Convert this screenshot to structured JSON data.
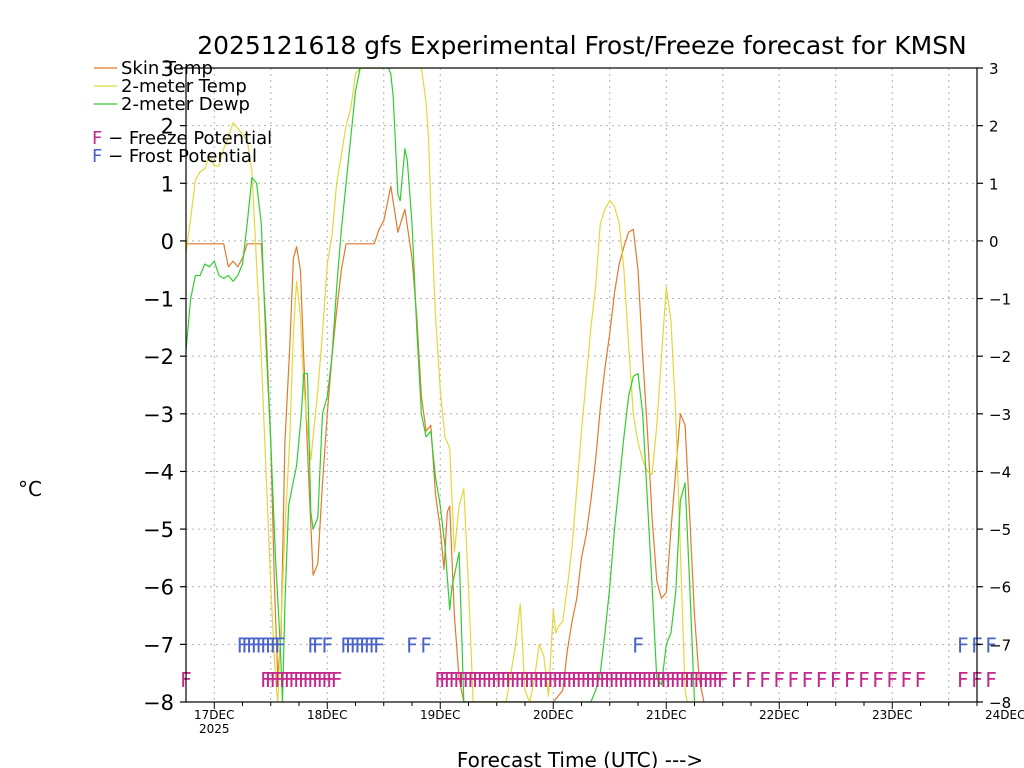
{
  "chart_data": {
    "type": "line",
    "title": "2025121618 gfs Experimental Frost/Freeze forecast for KMSN",
    "xlabel": "Forecast Time (UTC) --->",
    "ylabel": "°C",
    "ylim": [
      -8,
      3
    ],
    "yticks": [
      3,
      2,
      1,
      0,
      -1,
      -2,
      -3,
      -4,
      -5,
      -6,
      -7,
      -8
    ],
    "ytick_labels": [
      "3",
      "2",
      "1",
      "0",
      "−1",
      "−2",
      "−3",
      "−4",
      "−5",
      "−6",
      "−7",
      "−8"
    ],
    "xlim_hours": [
      -6,
      162
    ],
    "x_unit": "hours after 2025-12-17 00 UTC",
    "xticks": [
      {
        "hour": 0,
        "label": "17DEC",
        "sublabel": "2025"
      },
      {
        "hour": 24,
        "label": "18DEC",
        "sublabel": ""
      },
      {
        "hour": 48,
        "label": "19DEC",
        "sublabel": ""
      },
      {
        "hour": 72,
        "label": "20DEC",
        "sublabel": ""
      },
      {
        "hour": 96,
        "label": "21DEC",
        "sublabel": ""
      },
      {
        "hour": 120,
        "label": "22DEC",
        "sublabel": ""
      },
      {
        "hour": 144,
        "label": "23DEC",
        "sublabel": ""
      },
      {
        "hour": 168,
        "label": "24DEC",
        "sublabel": ""
      }
    ],
    "grid": true,
    "legend_position": "top-left",
    "series": [
      {
        "name": "Skin Temp",
        "color": "#e07a2c",
        "points": [
          [
            -6,
            -0.05
          ],
          [
            0,
            -0.05
          ],
          [
            2,
            -0.05
          ],
          [
            3,
            -0.45
          ],
          [
            4,
            -0.35
          ],
          [
            5,
            -0.45
          ],
          [
            6,
            -0.3
          ],
          [
            7,
            -0.05
          ],
          [
            8,
            -0.05
          ],
          [
            9,
            -0.05
          ],
          [
            10,
            -0.05
          ],
          [
            11,
            -1.5
          ],
          [
            12,
            -3.5
          ],
          [
            12.8,
            -6.0
          ],
          [
            13.5,
            -7.6
          ],
          [
            14.2,
            -6.8
          ],
          [
            15,
            -3.5
          ],
          [
            16,
            -1.9
          ],
          [
            16.8,
            -0.3
          ],
          [
            17.5,
            -0.1
          ],
          [
            18.3,
            -0.5
          ],
          [
            19,
            -2.0
          ],
          [
            20,
            -4.0
          ],
          [
            21,
            -5.8
          ],
          [
            22,
            -5.6
          ],
          [
            23,
            -4.2
          ],
          [
            24,
            -3.0
          ],
          [
            25,
            -2.0
          ],
          [
            26,
            -1.2
          ],
          [
            27,
            -0.5
          ],
          [
            28,
            -0.05
          ],
          [
            30,
            -0.05
          ],
          [
            33,
            -0.05
          ],
          [
            34,
            -0.05
          ],
          [
            35,
            0.2
          ],
          [
            36,
            0.35
          ],
          [
            37.5,
            0.95
          ],
          [
            39,
            0.15
          ],
          [
            40.5,
            0.55
          ],
          [
            42,
            -0.3
          ],
          [
            43,
            -1.3
          ],
          [
            44,
            -2.7
          ],
          [
            45,
            -3.3
          ],
          [
            46,
            -3.2
          ],
          [
            47,
            -4.4
          ],
          [
            48,
            -5.0
          ],
          [
            48.8,
            -5.7
          ],
          [
            49.5,
            -4.7
          ],
          [
            50,
            -4.6
          ],
          [
            51,
            -6.5
          ],
          [
            52,
            -7.6
          ],
          [
            53,
            -8.0
          ],
          [
            72,
            -8.0
          ],
          [
            74,
            -7.8
          ],
          [
            75,
            -7.1
          ],
          [
            76,
            -6.6
          ],
          [
            77,
            -6.2
          ],
          [
            78,
            -5.5
          ],
          [
            79,
            -5.1
          ],
          [
            80,
            -4.5
          ],
          [
            81,
            -3.8
          ],
          [
            82,
            -2.9
          ],
          [
            83,
            -2.2
          ],
          [
            84,
            -1.6
          ],
          [
            85,
            -0.9
          ],
          [
            86,
            -0.4
          ],
          [
            87,
            -0.1
          ],
          [
            88,
            0.15
          ],
          [
            89,
            0.2
          ],
          [
            90,
            -0.5
          ],
          [
            91,
            -2.0
          ],
          [
            92,
            -3.3
          ],
          [
            93,
            -4.8
          ],
          [
            94,
            -5.9
          ],
          [
            95,
            -6.2
          ],
          [
            96,
            -6.1
          ],
          [
            97,
            -5.0
          ],
          [
            98,
            -4.0
          ],
          [
            99,
            -3.0
          ],
          [
            100,
            -3.2
          ],
          [
            101,
            -4.8
          ],
          [
            102,
            -6.5
          ],
          [
            103,
            -7.6
          ],
          [
            104,
            -8.0
          ]
        ]
      },
      {
        "name": "2-meter Temp",
        "color": "#e2d83c",
        "points": [
          [
            -6,
            -0.2
          ],
          [
            -5,
            0.4
          ],
          [
            -4,
            1.05
          ],
          [
            -3,
            1.2
          ],
          [
            -2,
            1.25
          ],
          [
            -1,
            1.5
          ],
          [
            0,
            1.3
          ],
          [
            1,
            1.3
          ],
          [
            2,
            1.6
          ],
          [
            3,
            1.8
          ],
          [
            4,
            2.05
          ],
          [
            5,
            1.95
          ],
          [
            6,
            1.85
          ],
          [
            7,
            1.75
          ],
          [
            8,
            1.2
          ],
          [
            9,
            -0.4
          ],
          [
            10,
            -2.0
          ],
          [
            11,
            -4.0
          ],
          [
            12,
            -6.0
          ],
          [
            13,
            -7.6
          ],
          [
            13.5,
            -8.0
          ],
          [
            14,
            -7.0
          ],
          [
            15,
            -5.0
          ],
          [
            16,
            -3.5
          ],
          [
            16.8,
            -1.6
          ],
          [
            17.5,
            -0.7
          ],
          [
            18.3,
            -1.3
          ],
          [
            19,
            -2.5
          ],
          [
            20,
            -3.4
          ],
          [
            20.5,
            -3.8
          ],
          [
            21,
            -3.4
          ],
          [
            22,
            -2.6
          ],
          [
            23,
            -1.6
          ],
          [
            24,
            -0.4
          ],
          [
            25,
            0.1
          ],
          [
            26,
            1.0
          ],
          [
            27,
            1.5
          ],
          [
            28,
            2.0
          ],
          [
            29,
            2.3
          ],
          [
            30,
            2.9
          ],
          [
            31,
            3.0
          ],
          [
            44,
            3.0
          ],
          [
            45,
            2.4
          ],
          [
            45.5,
            1.8
          ],
          [
            46,
            0.6
          ],
          [
            47,
            -1.3
          ],
          [
            48,
            -2.6
          ],
          [
            49,
            -3.4
          ],
          [
            50,
            -3.6
          ],
          [
            51,
            -5.4
          ],
          [
            52,
            -4.6
          ],
          [
            53,
            -4.3
          ],
          [
            54,
            -6.0
          ],
          [
            55,
            -8.0
          ],
          [
            62,
            -8.0
          ],
          [
            63,
            -7.5
          ],
          [
            64,
            -7.0
          ],
          [
            65,
            -6.3
          ],
          [
            66,
            -7.8
          ],
          [
            67,
            -8.0
          ],
          [
            68,
            -7.6
          ],
          [
            69,
            -7.0
          ],
          [
            70,
            -7.2
          ],
          [
            71,
            -7.9
          ],
          [
            72,
            -6.4
          ],
          [
            72.5,
            -6.8
          ],
          [
            73,
            -6.7
          ],
          [
            74,
            -6.6
          ],
          [
            75,
            -6.0
          ],
          [
            76,
            -5.3
          ],
          [
            77,
            -4.3
          ],
          [
            78,
            -3.3
          ],
          [
            79,
            -2.4
          ],
          [
            80,
            -1.5
          ],
          [
            81,
            -0.8
          ],
          [
            82,
            0.3
          ],
          [
            83,
            0.55
          ],
          [
            84,
            0.7
          ],
          [
            85,
            0.6
          ],
          [
            86,
            0.3
          ],
          [
            87,
            -0.5
          ],
          [
            88,
            -1.8
          ],
          [
            89,
            -3.0
          ],
          [
            90,
            -3.5
          ],
          [
            91,
            -3.8
          ],
          [
            92,
            -4.0
          ],
          [
            93,
            -4.05
          ],
          [
            94,
            -3.2
          ],
          [
            95,
            -2.0
          ],
          [
            96,
            -0.8
          ],
          [
            97,
            -1.4
          ],
          [
            98,
            -3.0
          ],
          [
            99,
            -5.4
          ],
          [
            100,
            -7.8
          ],
          [
            100.5,
            -8.0
          ]
        ]
      },
      {
        "name": "2-meter Dewp",
        "color": "#33cc33",
        "points": [
          [
            -6,
            -1.9
          ],
          [
            -5,
            -1.0
          ],
          [
            -4,
            -0.6
          ],
          [
            -3,
            -0.6
          ],
          [
            -2,
            -0.4
          ],
          [
            -1,
            -0.45
          ],
          [
            0,
            -0.35
          ],
          [
            1,
            -0.6
          ],
          [
            2,
            -0.65
          ],
          [
            3,
            -0.6
          ],
          [
            4,
            -0.7
          ],
          [
            5,
            -0.6
          ],
          [
            6,
            -0.4
          ],
          [
            7,
            0.3
          ],
          [
            8,
            1.1
          ],
          [
            9,
            1.0
          ],
          [
            10,
            0.3
          ],
          [
            11,
            -1.8
          ],
          [
            12,
            -3.5
          ],
          [
            13,
            -5.5
          ],
          [
            14,
            -7.0
          ],
          [
            14.5,
            -8.0
          ],
          [
            15,
            -6.3
          ],
          [
            15.8,
            -4.6
          ],
          [
            16.5,
            -4.3
          ],
          [
            17.5,
            -3.9
          ],
          [
            18.5,
            -3.0
          ],
          [
            19,
            -2.3
          ],
          [
            19.8,
            -2.3
          ],
          [
            20.5,
            -4.7
          ],
          [
            21,
            -5.0
          ],
          [
            22,
            -4.8
          ],
          [
            23,
            -3.0
          ],
          [
            24,
            -2.7
          ],
          [
            25,
            -2.0
          ],
          [
            26,
            -0.8
          ],
          [
            27,
            0.2
          ],
          [
            28,
            1.0
          ],
          [
            29,
            1.8
          ],
          [
            30,
            2.6
          ],
          [
            31,
            3.0
          ],
          [
            37,
            3.0
          ],
          [
            37.5,
            2.9
          ],
          [
            38,
            2.5
          ],
          [
            39,
            0.8
          ],
          [
            39.5,
            0.7
          ],
          [
            40.5,
            1.6
          ],
          [
            41,
            1.4
          ],
          [
            42,
            0.3
          ],
          [
            43,
            -1.5
          ],
          [
            44,
            -3.0
          ],
          [
            45,
            -3.4
          ],
          [
            46,
            -3.3
          ],
          [
            47,
            -4.1
          ],
          [
            48,
            -4.6
          ],
          [
            49,
            -5.3
          ],
          [
            50,
            -6.4
          ],
          [
            50.5,
            -6.0
          ],
          [
            51,
            -5.8
          ],
          [
            52,
            -5.4
          ],
          [
            53,
            -8.0
          ],
          [
            80,
            -8.0
          ],
          [
            81,
            -7.8
          ],
          [
            82,
            -7.5
          ],
          [
            83,
            -6.8
          ],
          [
            84,
            -6.0
          ],
          [
            85,
            -5.0
          ],
          [
            86,
            -4.2
          ],
          [
            87,
            -3.4
          ],
          [
            88,
            -2.7
          ],
          [
            89,
            -2.35
          ],
          [
            90,
            -2.3
          ],
          [
            91,
            -3.0
          ],
          [
            92,
            -4.5
          ],
          [
            93,
            -6.0
          ],
          [
            94,
            -7.6
          ],
          [
            95,
            -7.7
          ],
          [
            96,
            -7.0
          ],
          [
            97,
            -6.8
          ],
          [
            98,
            -6.1
          ],
          [
            99,
            -4.5
          ],
          [
            100,
            -4.2
          ],
          [
            101,
            -6.0
          ],
          [
            102,
            -8.0
          ]
        ]
      }
    ],
    "legend": [
      {
        "label": "Skin Temp",
        "color": "#e07a2c"
      },
      {
        "label": "2-meter Temp",
        "color": "#e2d83c"
      },
      {
        "label": "2-meter Dewp",
        "color": "#33cc33"
      }
    ],
    "potential_legend": [
      {
        "letter": "F",
        "text": " − Freeze Potential",
        "color": "#c4288c"
      },
      {
        "letter": "F",
        "text": " − Frost Potential",
        "color": "#4a63c8"
      }
    ],
    "frost_potential": {
      "letter": "F",
      "color": "#4a63c8",
      "level": -7.0,
      "hours": [
        6,
        7,
        8,
        9,
        10,
        11,
        12,
        13,
        14,
        21,
        22,
        24,
        28,
        29,
        30,
        31,
        32,
        33,
        34,
        35,
        42,
        45,
        90,
        159,
        162,
        165
      ]
    },
    "freeze_potential": {
      "letter": "F",
      "color": "#c4288c",
      "level": -7.6,
      "hours": [
        -6,
        11,
        12,
        13,
        14,
        15,
        16,
        17,
        18,
        19,
        20,
        21,
        22,
        23,
        24,
        25,
        26,
        48,
        49,
        50,
        51,
        52,
        53,
        54,
        55,
        56,
        57,
        58,
        59,
        60,
        61,
        62,
        63,
        64,
        65,
        66,
        67,
        68,
        69,
        70,
        71,
        72,
        73,
        74,
        75,
        76,
        77,
        78,
        79,
        80,
        81,
        82,
        83,
        84,
        85,
        86,
        87,
        88,
        89,
        90,
        91,
        92,
        93,
        94,
        95,
        96,
        97,
        98,
        99,
        100,
        101,
        102,
        103,
        104,
        105,
        106,
        107,
        108,
        111,
        114,
        117,
        120,
        123,
        126,
        129,
        132,
        135,
        138,
        141,
        144,
        147,
        150,
        159,
        162,
        165
      ]
    }
  }
}
